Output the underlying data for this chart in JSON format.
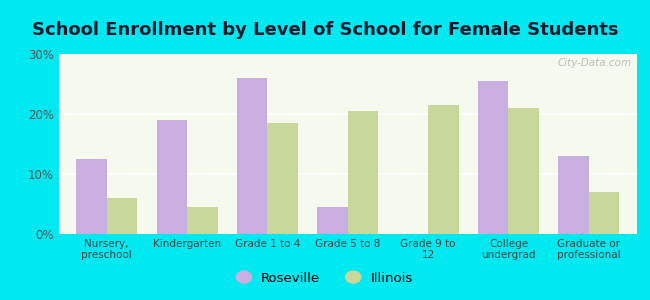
{
  "title": "School Enrollment by Level of School for Female Students",
  "categories": [
    "Nursery,\npreschool",
    "Kindergarten",
    "Grade 1 to 4",
    "Grade 5 to 8",
    "Grade 9 to\n12",
    "College\nundergrad",
    "Graduate or\nprofessional"
  ],
  "roseville": [
    12.5,
    19.0,
    26.0,
    4.5,
    0,
    25.5,
    13.0
  ],
  "illinois": [
    6.0,
    4.5,
    18.5,
    20.5,
    21.5,
    21.0,
    7.0
  ],
  "roseville_color": "#c9aee0",
  "illinois_color": "#c8d89a",
  "background_outer": "#00e8f0",
  "background_inner_top": "#f5f9ee",
  "background_inner_bottom": "#e8f2d8",
  "ylim": [
    0,
    30
  ],
  "yticks": [
    0,
    10,
    20,
    30
  ],
  "ytick_labels": [
    "0%",
    "10%",
    "20%",
    "30%"
  ],
  "legend_labels": [
    "Roseville",
    "Illinois"
  ],
  "bar_width": 0.38,
  "title_fontsize": 13,
  "watermark": "City-Data.com"
}
